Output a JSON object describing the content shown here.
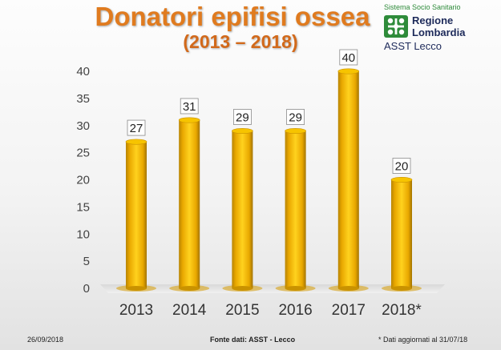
{
  "chart_data": {
    "type": "bar",
    "title": "Donatori epifisi ossea",
    "subtitle": "(2013 – 2018)",
    "categories": [
      "2013",
      "2014",
      "2015",
      "2016",
      "2017",
      "2018*"
    ],
    "values": [
      27,
      31,
      29,
      29,
      40,
      20
    ],
    "data_labels": [
      "27",
      "31",
      "29",
      "29",
      "40",
      "20"
    ],
    "y_ticks": [
      "0",
      "5",
      "10",
      "15",
      "20",
      "25",
      "30",
      "35",
      "40"
    ],
    "ylim": [
      0,
      40
    ],
    "grid": false,
    "legend": "none",
    "bar_color": "#f2b600"
  },
  "logo": {
    "top_text": "Sistema Socio Sanitario",
    "line1": "Regione",
    "line2": "Lombardia",
    "asst": "ASST Lecco",
    "color": "#2e8b3a"
  },
  "footer": {
    "date": "26/09/2018",
    "source": "Fonte dati: ASST - Lecco",
    "note": "* Dati aggiornati al 31/07/18"
  }
}
